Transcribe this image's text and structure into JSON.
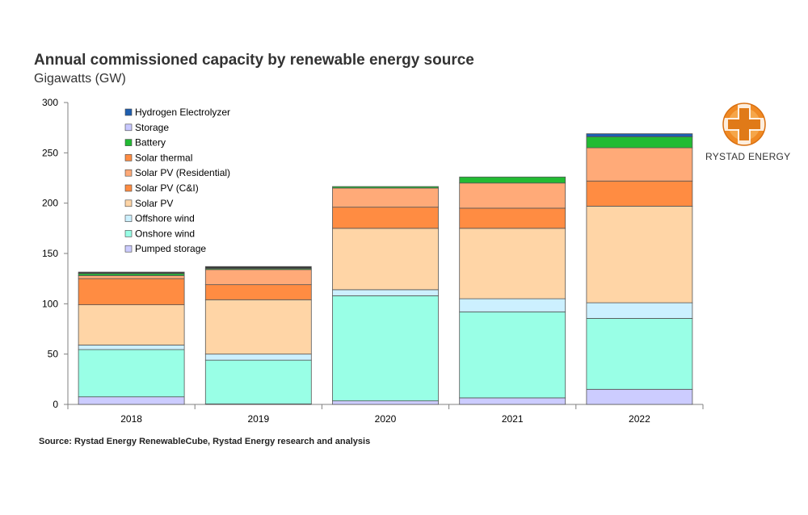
{
  "title": "Annual commissioned capacity by renewable energy source",
  "subtitle": "Gigawatts (GW)",
  "source": "Source: Rystad Energy RenewableCube, Rystad Energy research and analysis",
  "logo_text": "RYSTAD ENERGY",
  "chart_data": {
    "type": "bar",
    "stacked": true,
    "categories": [
      "2018",
      "2019",
      "2020",
      "2021",
      "2022"
    ],
    "ylim": [
      0,
      300
    ],
    "yticks": [
      0,
      50,
      100,
      150,
      200,
      250,
      300
    ],
    "legend_position": "top-left",
    "grid": false,
    "series": [
      {
        "name": "Pumped storage",
        "color": "#ccccff",
        "values": [
          7.5,
          0.5,
          3.5,
          6.5,
          15
        ]
      },
      {
        "name": "Onshore wind",
        "color": "#99ffe6",
        "values": [
          47,
          43.5,
          104.5,
          85.5,
          70.5
        ]
      },
      {
        "name": "Offshore wind",
        "color": "#ccf0ff",
        "values": [
          4.5,
          6,
          6,
          13,
          15.5
        ]
      },
      {
        "name": "Solar PV",
        "color": "#ffd5a6",
        "values": [
          40,
          54,
          61,
          70,
          96
        ]
      },
      {
        "name": "Solar PV (C&I)",
        "color": "#ff8c42",
        "values": [
          26,
          15,
          21,
          20,
          25
        ]
      },
      {
        "name": "Solar PV (Residential)",
        "color": "#ffaa78",
        "values": [
          3,
          15,
          19,
          25,
          33
        ]
      },
      {
        "name": "Solar thermal",
        "color": "#ff8c42",
        "values": [
          0,
          0,
          0,
          0,
          0
        ]
      },
      {
        "name": "Battery",
        "color": "#22bb33",
        "values": [
          2,
          1,
          1.5,
          6,
          11
        ]
      },
      {
        "name": "Storage",
        "color": "#c8c8ff",
        "values": [
          0,
          0,
          0,
          0,
          0
        ]
      },
      {
        "name": "Hydrogen Electrolyzer",
        "color": "#1f5fb0",
        "values": [
          0,
          0,
          0,
          0,
          3
        ]
      },
      {
        "name": "",
        "color": "#3a3a3a",
        "values": [
          1.5,
          2,
          0,
          0,
          0
        ]
      }
    ]
  }
}
